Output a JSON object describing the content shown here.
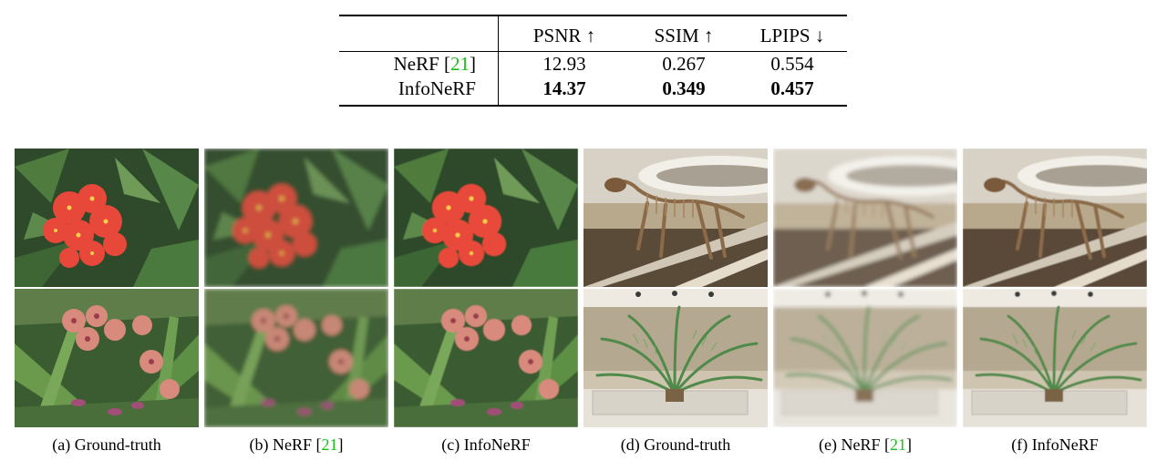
{
  "table": {
    "headers": [
      "",
      "PSNR ↑",
      "SSIM ↑",
      "LPIPS ↓"
    ],
    "rows": [
      {
        "method": "NeRF [",
        "cite": "21",
        "close": "]",
        "psnr": "12.93",
        "ssim": "0.267",
        "lpips": "0.554"
      },
      {
        "method": "InfoNeRF",
        "cite": "",
        "close": "",
        "psnr": "14.37",
        "ssim": "0.349",
        "lpips": "0.457"
      }
    ]
  },
  "captions": [
    {
      "prefix": "(a) Ground-truth",
      "cite": "",
      "suffix": ""
    },
    {
      "prefix": "(b) NeRF [",
      "cite": "21",
      "suffix": "]"
    },
    {
      "prefix": "(c) InfoNeRF",
      "cite": "",
      "suffix": ""
    },
    {
      "prefix": "(d) Ground-truth",
      "cite": "",
      "suffix": ""
    },
    {
      "prefix": "(e) NeRF [",
      "cite": "21",
      "suffix": "]"
    },
    {
      "prefix": "(f) InfoNeRF",
      "cite": "",
      "suffix": ""
    }
  ],
  "colors": {
    "citation": "#18c018",
    "flower_red": "#e8483a",
    "orchid_pink": "#d88a7c",
    "foliage": "#3f6b34",
    "museum_wood": "#8a6a48",
    "palm_green": "#4f8a4a"
  },
  "images": [
    "red-flower-ground-truth",
    "red-flower-nerf",
    "red-flower-infonerf",
    "trex-ground-truth",
    "trex-nerf",
    "trex-infonerf",
    "orchid-ground-truth",
    "orchid-nerf",
    "orchid-infonerf",
    "fern-ground-truth",
    "fern-nerf",
    "fern-infonerf"
  ]
}
